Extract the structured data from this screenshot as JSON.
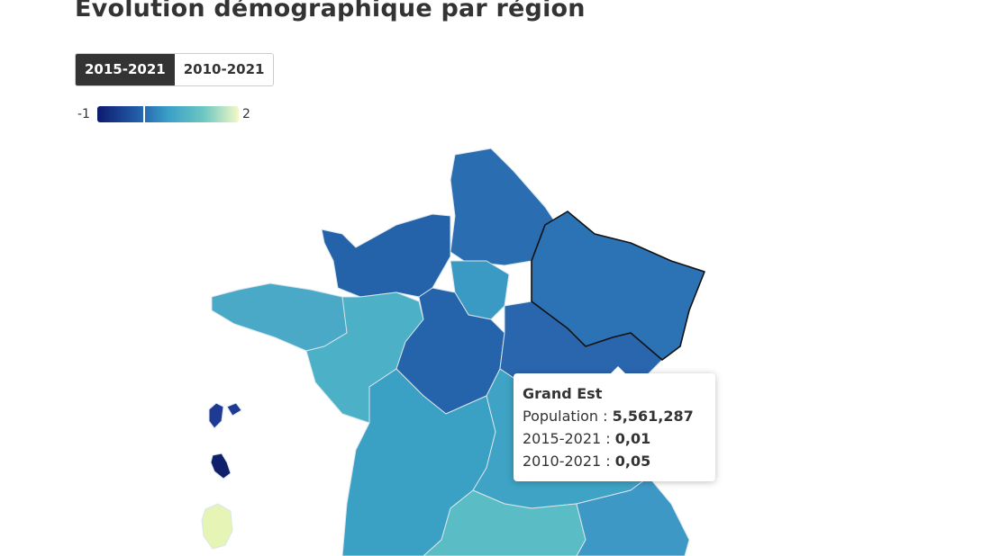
{
  "header": {
    "title": "Evolution démographique par région"
  },
  "toggle": {
    "options": [
      "2015-2021",
      "2010-2021"
    ],
    "active": 0
  },
  "legend": {
    "min": -1,
    "max": 2
  },
  "tooltip": {
    "title": "Grand Est",
    "rows": [
      {
        "label": "Population :",
        "value": "5,561,287"
      },
      {
        "label": "2015-2021 :",
        "value": "0,01"
      },
      {
        "label": "2010-2021 :",
        "value": "0,05"
      }
    ]
  }
}
